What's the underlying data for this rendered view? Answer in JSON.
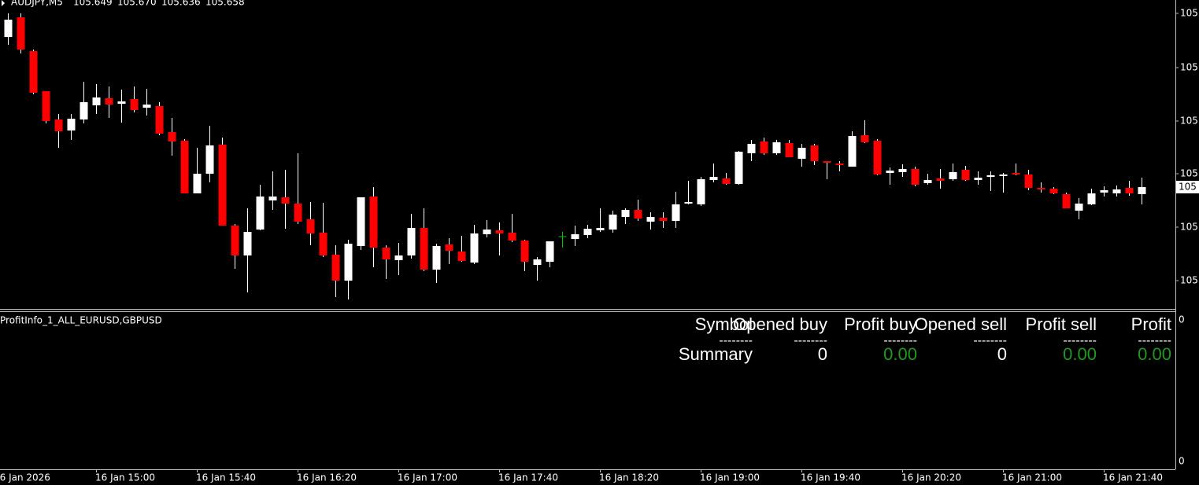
{
  "header": {
    "symbol": "AUDJPY,M5",
    "ohlc": [
      "105.649",
      "105.670",
      "105.636",
      "105.658"
    ]
  },
  "chart_data": {
    "type": "candlestick",
    "categories": [
      null,
      null,
      null,
      null,
      null,
      null,
      null,
      "16 Jan 15:00",
      null,
      null,
      null,
      null,
      null,
      null,
      null,
      "16 Jan 15:40",
      null,
      null,
      null,
      null,
      null,
      null,
      null,
      "16 Jan 16:20",
      null,
      null,
      null,
      null,
      null,
      null,
      null,
      "16 Jan 17:00",
      null,
      null,
      null,
      null,
      null,
      null,
      null,
      "16 Jan 17:40",
      null,
      null,
      null,
      null,
      null,
      null,
      null,
      "16 Jan 18:20",
      null,
      null,
      null,
      null,
      null,
      null,
      null,
      "16 Jan 19:00",
      null,
      null,
      null,
      null,
      null,
      null,
      null,
      "16 Jan 19:40",
      null,
      null,
      null,
      null,
      null,
      null,
      null,
      "16 Jan 20:20",
      null,
      null,
      null,
      null,
      null,
      null,
      null,
      "16 Jan 21:00",
      null,
      null,
      null,
      null,
      null,
      null,
      null,
      "16 Jan 21:40",
      null,
      null,
      null
    ],
    "x_start_label": "16 Jan 2026",
    "open": [
      105.849,
      105.874,
      105.831,
      105.78,
      105.744,
      105.73,
      105.744,
      105.762,
      105.771,
      105.764,
      105.77,
      105.759,
      105.761,
      105.728,
      105.717,
      105.65,
      105.675,
      105.712,
      105.609,
      105.571,
      105.604,
      105.641,
      105.645,
      105.637,
      105.617,
      105.6,
      105.572,
      105.539,
      105.583,
      105.646,
      105.581,
      105.565,
      105.571,
      105.606,
      105.553,
      105.585,
      105.576,
      105.562,
      105.598,
      105.603,
      105.6,
      105.59,
      105.559,
      105.563,
      105.595,
      105.592,
      105.597,
      105.603,
      105.604,
      105.62,
      105.629,
      105.614,
      105.619,
      105.615,
      105.637,
      105.636,
      105.667,
      105.669,
      105.662,
      105.701,
      105.716,
      105.701,
      105.714,
      105.694,
      105.711,
      105.691,
      105.688,
      105.684,
      105.724,
      105.717,
      105.676,
      105.677,
      105.681,
      105.663,
      105.669,
      105.668,
      105.68,
      105.667,
      105.671,
      105.672,
      105.676,
      105.674,
      105.657,
      105.656,
      105.649,
      105.628,
      105.636,
      105.651,
      105.65,
      105.657,
      105.649
    ],
    "high": [
      105.879,
      105.879,
      105.833,
      105.78,
      105.751,
      105.751,
      105.792,
      105.789,
      105.786,
      105.782,
      105.786,
      105.783,
      105.766,
      105.746,
      105.719,
      105.708,
      105.736,
      105.721,
      105.611,
      105.631,
      105.661,
      105.678,
      105.68,
      105.701,
      105.639,
      105.638,
      105.584,
      105.591,
      105.645,
      105.658,
      105.584,
      105.587,
      105.624,
      105.631,
      105.586,
      105.593,
      105.596,
      105.61,
      105.616,
      105.613,
      105.624,
      105.591,
      105.569,
      105.589,
      105.601,
      105.609,
      105.61,
      105.631,
      105.628,
      105.631,
      105.642,
      105.626,
      105.626,
      105.652,
      105.666,
      105.671,
      105.688,
      105.676,
      105.704,
      105.718,
      105.721,
      105.718,
      105.718,
      105.713,
      105.713,
      105.691,
      105.691,
      105.729,
      105.743,
      105.719,
      105.683,
      105.687,
      105.684,
      105.675,
      105.681,
      105.688,
      105.685,
      105.678,
      105.678,
      105.676,
      105.688,
      105.68,
      105.664,
      105.658,
      105.651,
      105.644,
      105.656,
      105.659,
      105.66,
      105.666,
      105.67
    ],
    "low": [
      105.839,
      105.828,
      105.776,
      105.739,
      105.708,
      105.718,
      105.739,
      105.751,
      105.746,
      105.74,
      105.753,
      105.749,
      105.724,
      105.698,
      105.65,
      105.65,
      105.664,
      105.609,
      105.554,
      105.524,
      105.603,
      105.629,
      105.605,
      105.611,
      105.584,
      105.569,
      105.518,
      105.515,
      105.578,
      105.556,
      105.541,
      105.546,
      105.567,
      105.551,
      105.536,
      105.56,
      105.563,
      105.56,
      105.594,
      105.571,
      105.588,
      105.551,
      105.539,
      105.556,
      105.581,
      105.583,
      105.593,
      105.601,
      105.6,
      105.611,
      105.615,
      105.604,
      105.606,
      105.606,
      105.636,
      105.634,
      105.664,
      105.661,
      105.661,
      105.691,
      105.699,
      105.699,
      105.696,
      105.684,
      105.686,
      105.668,
      105.678,
      105.684,
      105.714,
      105.673,
      105.661,
      105.671,
      105.659,
      105.661,
      105.656,
      105.666,
      105.666,
      105.661,
      105.653,
      105.651,
      105.673,
      105.654,
      105.651,
      105.649,
      105.631,
      105.617,
      105.635,
      105.646,
      105.646,
      105.647,
      105.636
    ],
    "close": [
      105.871,
      105.833,
      105.778,
      105.742,
      105.729,
      105.745,
      105.766,
      105.772,
      105.763,
      105.767,
      105.756,
      105.763,
      105.726,
      105.716,
      105.65,
      105.675,
      105.711,
      105.609,
      105.571,
      105.601,
      105.646,
      105.646,
      105.637,
      105.614,
      105.599,
      105.571,
      105.539,
      105.586,
      105.645,
      105.581,
      105.566,
      105.571,
      105.606,
      105.553,
      105.583,
      105.577,
      105.564,
      105.599,
      105.604,
      105.599,
      105.59,
      105.563,
      105.566,
      105.589,
      105.595,
      105.598,
      105.605,
      105.606,
      105.623,
      105.629,
      105.618,
      105.62,
      105.615,
      105.636,
      105.639,
      105.668,
      105.671,
      105.662,
      105.703,
      105.713,
      105.701,
      105.715,
      105.696,
      105.708,
      105.691,
      105.689,
      105.686,
      105.723,
      105.715,
      105.674,
      105.679,
      105.681,
      105.661,
      105.667,
      105.666,
      105.677,
      105.667,
      105.67,
      105.673,
      105.674,
      105.674,
      105.657,
      105.655,
      105.65,
      105.631,
      105.637,
      105.65,
      105.654,
      105.655,
      105.65,
      105.658
    ],
    "up_color": "#ffffff",
    "down_color": "#ff0000",
    "doji_color": "#00c800",
    "wick_color": "#ffffff",
    "ylim": [
      105.503,
      105.896
    ],
    "yticks": [
      {
        "value": 105.879,
        "label": "105"
      },
      {
        "value": 105.81,
        "label": "105"
      },
      {
        "value": 105.742,
        "label": "105"
      },
      {
        "value": 105.675,
        "label": "105"
      },
      {
        "value": 105.607,
        "label": "105"
      },
      {
        "value": 105.539,
        "label": "105"
      }
    ],
    "current_price": {
      "value": 105.658,
      "label": "105"
    }
  },
  "indicator": {
    "name": "ProfitInfo_1_ALL_EURUSD,GBPUSD",
    "scale_labels": [
      "0",
      "0"
    ],
    "columns": [
      "Symbol",
      "Opened buy",
      "Profit buy",
      "Opened sell",
      "Profit sell",
      "Profit"
    ],
    "separators": [
      "--------",
      "--------",
      "--------",
      "--------",
      "--------",
      "--------"
    ],
    "summary": [
      "Summary",
      "0",
      "0.00",
      "0",
      "0.00",
      "0.00"
    ],
    "summary_colors": [
      "#ffffff",
      "#ffffff",
      "#1f9a1f",
      "#ffffff",
      "#1f9a1f",
      "#1f9a1f"
    ]
  }
}
